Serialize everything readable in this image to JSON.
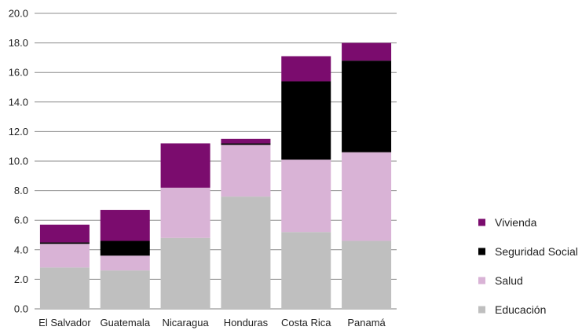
{
  "chart_data": {
    "type": "bar",
    "stacked": true,
    "categories": [
      "El Salvador",
      "Guatemala",
      "Nicaragua",
      "Honduras",
      "Costa Rica",
      "Panamá"
    ],
    "series": [
      {
        "name": "Educación",
        "color": "#bfbfbf",
        "values": [
          2.8,
          2.6,
          4.8,
          7.6,
          5.2,
          4.6
        ]
      },
      {
        "name": "Salud",
        "color": "#d9b3d6",
        "values": [
          1.6,
          1.0,
          3.4,
          3.5,
          4.9,
          6.0
        ]
      },
      {
        "name": "Seguridad Social",
        "color": "#000000",
        "values": [
          0.1,
          1.0,
          0.0,
          0.1,
          5.3,
          6.2
        ]
      },
      {
        "name": "Vivienda",
        "color": "#7b0c6e",
        "values": [
          1.2,
          2.1,
          3.0,
          0.3,
          1.7,
          1.2
        ]
      }
    ],
    "yticks": [
      "0.0",
      "2.0",
      "4.0",
      "6.0",
      "8.0",
      "10.0",
      "12.0",
      "14.0",
      "16.0",
      "18.0",
      "20.0"
    ],
    "ylim": [
      0,
      20
    ],
    "legend_order": [
      "Vivienda",
      "Seguridad Social",
      "Salud",
      "Educación"
    ],
    "legend_position": "right",
    "grid": true,
    "title": "",
    "xlabel": "",
    "ylabel": ""
  }
}
